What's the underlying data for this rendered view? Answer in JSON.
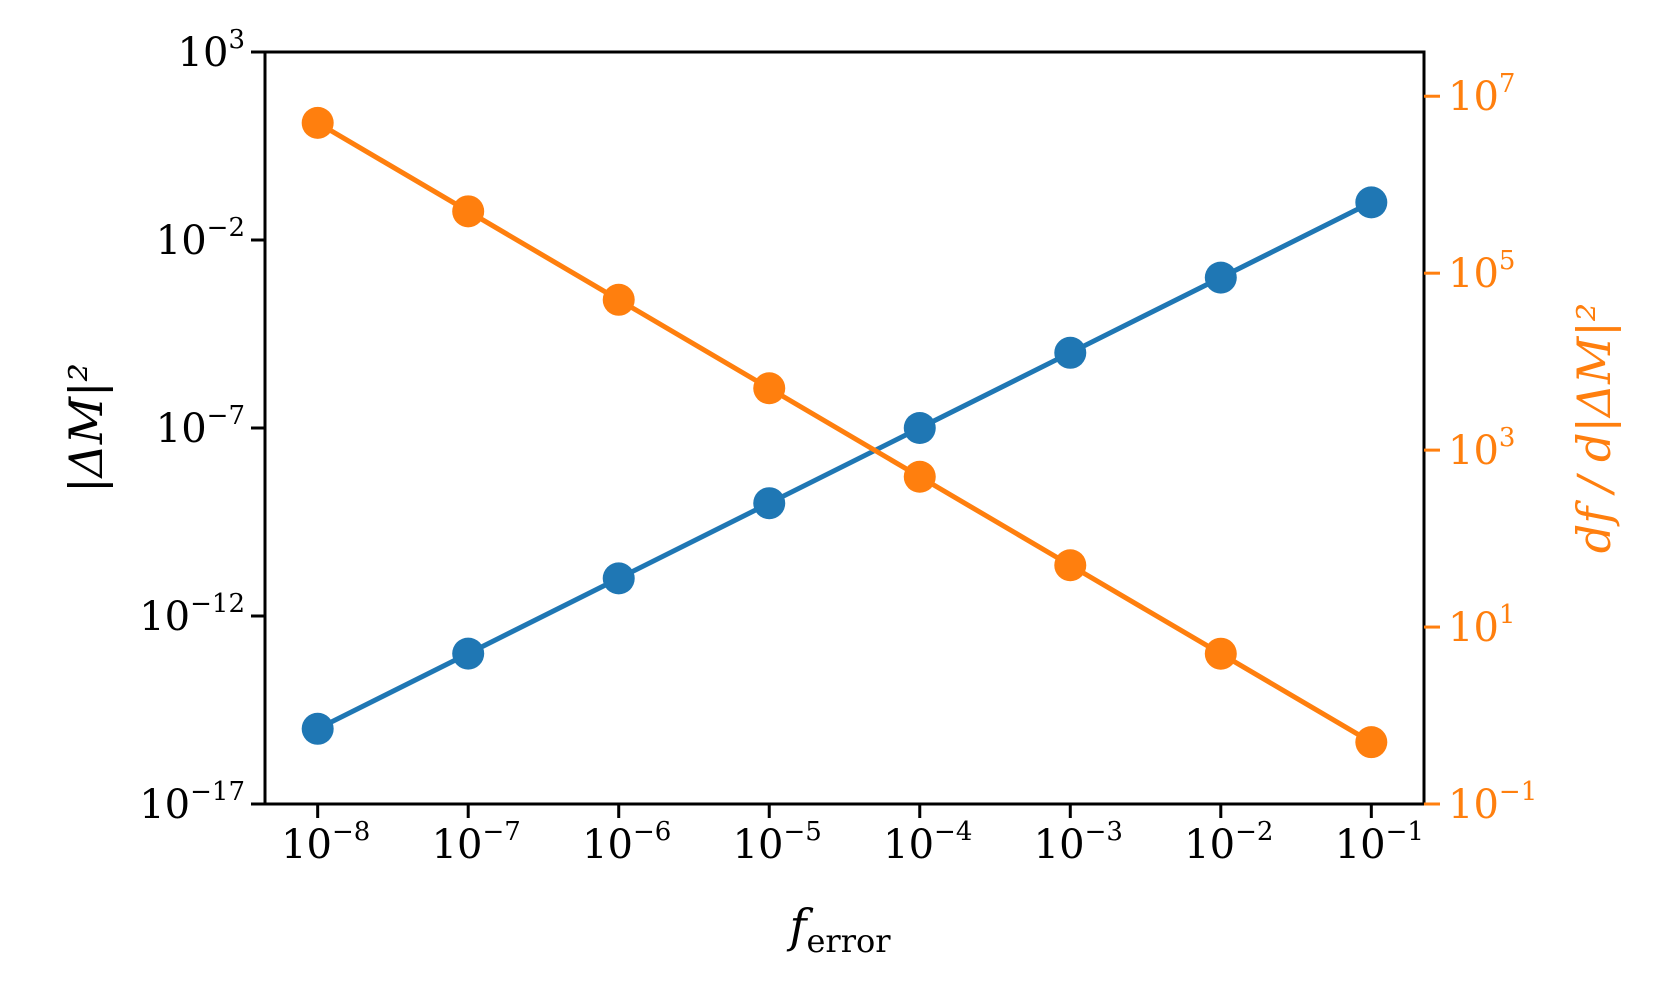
{
  "chart_data": {
    "type": "line",
    "x_scale": "log",
    "y_scale": "log",
    "y2_scale": "log",
    "x": [
      1e-08,
      1e-07,
      1e-06,
      1e-05,
      0.0001,
      0.001,
      0.01,
      0.1
    ],
    "xlim_log10": [
      -8.35,
      -0.65
    ],
    "ylim_log10": [
      -17,
      3
    ],
    "y2lim_log10": [
      -1,
      7.5
    ],
    "xticks": [
      {
        "base": "10",
        "exp": "−8",
        "log10": -8
      },
      {
        "base": "10",
        "exp": "−7",
        "log10": -7
      },
      {
        "base": "10",
        "exp": "−6",
        "log10": -6
      },
      {
        "base": "10",
        "exp": "−5",
        "log10": -5
      },
      {
        "base": "10",
        "exp": "−4",
        "log10": -4
      },
      {
        "base": "10",
        "exp": "−3",
        "log10": -3
      },
      {
        "base": "10",
        "exp": "−2",
        "log10": -2
      },
      {
        "base": "10",
        "exp": "−1",
        "log10": -1
      }
    ],
    "yticks": [
      {
        "base": "10",
        "exp": "3",
        "log10": 3
      },
      {
        "base": "10",
        "exp": "−2",
        "log10": -2
      },
      {
        "base": "10",
        "exp": "−7",
        "log10": -7
      },
      {
        "base": "10",
        "exp": "−12",
        "log10": -12
      },
      {
        "base": "10",
        "exp": "−17",
        "log10": -17
      }
    ],
    "y2ticks": [
      {
        "base": "10",
        "exp": "7",
        "log10": 7
      },
      {
        "base": "10",
        "exp": "5",
        "log10": 5
      },
      {
        "base": "10",
        "exp": "3",
        "log10": 3
      },
      {
        "base": "10",
        "exp": "1",
        "log10": 1
      },
      {
        "base": "10",
        "exp": "−1",
        "log10": -1
      }
    ],
    "xlabel": {
      "main": "f",
      "sub": "error"
    },
    "ylabel": "|ΔM|²",
    "y2label": "df / d|ΔM|²",
    "series": [
      {
        "axis": "left",
        "color": "#1f77b4",
        "values": [
          1e-15,
          1e-13,
          1e-11,
          1e-09,
          1e-07,
          1e-05,
          0.001,
          0.1
        ]
      },
      {
        "axis": "right",
        "color": "#ff7f0e",
        "values": [
          5000000.0,
          500000.0,
          50000.0,
          5000.0,
          500.0,
          50.0,
          5,
          0.5
        ]
      }
    ]
  }
}
